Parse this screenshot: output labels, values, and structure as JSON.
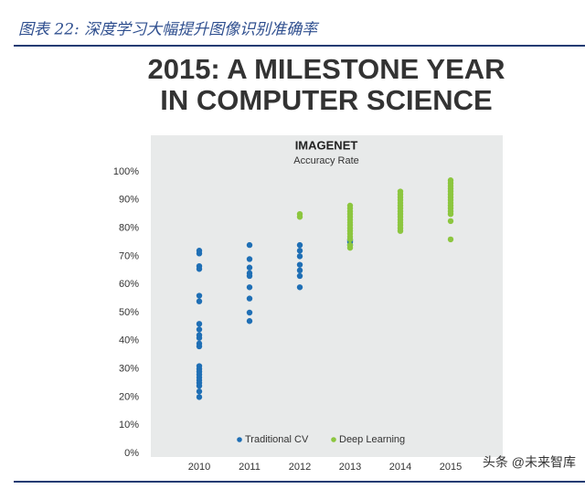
{
  "header": {
    "title": "图表 22:  深度学习大幅提升图像识别准确率"
  },
  "watermark": "头条 @未来智库",
  "chart_data": {
    "type": "scatter",
    "title": [
      "2015: A MILESTONE YEAR",
      "IN COMPUTER SCIENCE"
    ],
    "subtitle": "IMAGENET",
    "y_label": "Accuracy Rate",
    "xlim": [
      2009.5,
      2015.5
    ],
    "xticks": [
      2010,
      2011,
      2012,
      2013,
      2014,
      2015
    ],
    "ylim": [
      0,
      100
    ],
    "yticks": [
      {
        "value": 0,
        "label": "0%"
      },
      {
        "value": 10,
        "label": "10%"
      },
      {
        "value": 20,
        "label": "20%"
      },
      {
        "value": 30,
        "label": "30%"
      },
      {
        "value": 40,
        "label": "40%"
      },
      {
        "value": 50,
        "label": "50%"
      },
      {
        "value": 60,
        "label": "60%"
      },
      {
        "value": 70,
        "label": "70%"
      },
      {
        "value": 80,
        "label": "80%"
      },
      {
        "value": 90,
        "label": "90%"
      },
      {
        "value": 100,
        "label": "100%"
      }
    ],
    "legend": "bottom",
    "series": [
      {
        "name": "Traditional CV",
        "color": "#1f6fb5",
        "x": [
          2010,
          2010,
          2010,
          2010,
          2010,
          2010,
          2010,
          2010,
          2010,
          2010,
          2010,
          2010,
          2010,
          2010,
          2010,
          2010,
          2010,
          2010,
          2010,
          2010,
          2010,
          2010,
          2011,
          2011,
          2011,
          2011,
          2011,
          2011,
          2011,
          2011,
          2011,
          2012,
          2012,
          2012,
          2012,
          2012,
          2012,
          2012,
          2013,
          2013,
          2013,
          2013
        ],
        "values": [
          72,
          71,
          66.5,
          65.5,
          56,
          54,
          46,
          44,
          42,
          41,
          39,
          38,
          31,
          30,
          29,
          28,
          27,
          26,
          25,
          24,
          22,
          20,
          74,
          69,
          66,
          64,
          63,
          59,
          55,
          50,
          47,
          74,
          72,
          70,
          67,
          65,
          63,
          59,
          76,
          75.5,
          75,
          74
        ]
      },
      {
        "name": "Deep Learning",
        "color": "#8cc63f",
        "x": [
          2012,
          2012,
          2013,
          2013,
          2013,
          2013,
          2013,
          2013,
          2013,
          2013,
          2013,
          2013,
          2013,
          2013,
          2013,
          2013,
          2013,
          2014,
          2014,
          2014,
          2014,
          2014,
          2014,
          2014,
          2014,
          2014,
          2014,
          2014,
          2014,
          2014,
          2014,
          2014,
          2015,
          2015,
          2015,
          2015,
          2015,
          2015,
          2015,
          2015,
          2015,
          2015,
          2015,
          2015,
          2015,
          2015,
          2015
        ],
        "values": [
          85,
          84,
          88,
          87,
          86,
          85,
          84,
          83,
          82,
          81,
          80,
          79,
          78,
          77,
          76,
          74,
          73,
          93,
          92,
          91,
          90,
          89,
          88,
          87,
          86,
          85,
          84,
          83,
          82,
          81,
          80,
          79,
          97,
          96,
          95,
          94,
          93,
          92,
          91,
          90,
          89,
          88,
          87,
          86,
          85,
          82.5,
          76
        ]
      }
    ]
  }
}
